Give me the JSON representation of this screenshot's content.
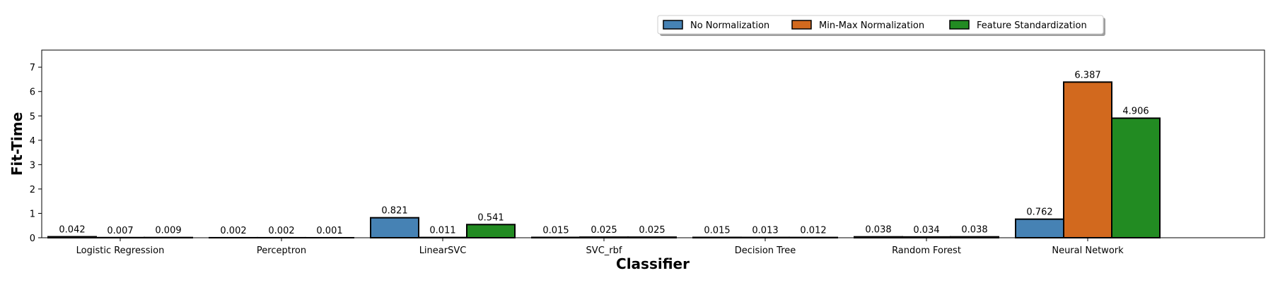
{
  "chart_data": {
    "type": "bar",
    "xlabel": "Classifier",
    "ylabel": "Fit-Time",
    "ylim": [
      0,
      7.7
    ],
    "yticks": [
      0,
      1,
      2,
      3,
      4,
      5,
      6,
      7
    ],
    "grid": false,
    "legend_position": "top-right",
    "categories": [
      "Logistic Regression",
      "Perceptron",
      "LinearSVC",
      "SVC_rbf",
      "Decision Tree",
      "Random Forest",
      "Neural Network"
    ],
    "series": [
      {
        "name": "No Normalization",
        "color": "#4682b4",
        "values": [
          0.042,
          0.002,
          0.821,
          0.015,
          0.015,
          0.038,
          0.762
        ]
      },
      {
        "name": "Min-Max Normalization",
        "color": "#d2691e",
        "values": [
          0.007,
          0.002,
          0.011,
          0.025,
          0.013,
          0.034,
          6.387
        ]
      },
      {
        "name": "Feature Standardization",
        "color": "#228b22",
        "values": [
          0.009,
          0.001,
          0.541,
          0.025,
          0.012,
          0.038,
          4.906
        ]
      }
    ]
  }
}
